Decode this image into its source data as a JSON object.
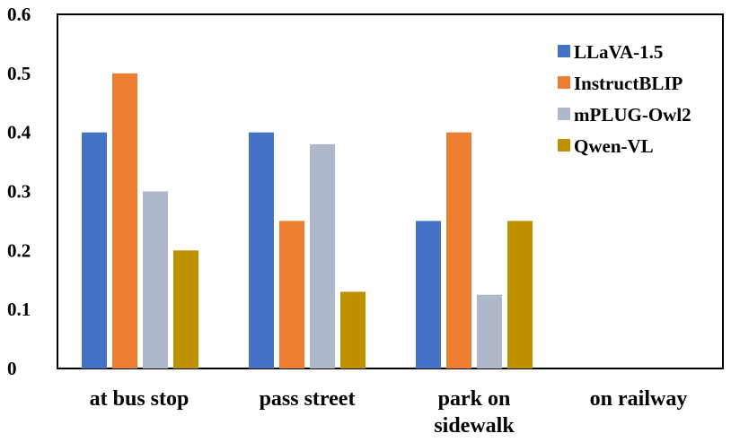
{
  "chart_data": {
    "type": "bar",
    "categories": [
      [
        "at bus stop"
      ],
      [
        "pass street"
      ],
      [
        "park on",
        "sidewalk"
      ],
      [
        "on railway"
      ]
    ],
    "series": [
      {
        "name": "LLaVA-1.5",
        "color": "#4472c4",
        "values": [
          0.4,
          0.4,
          0.25,
          0
        ]
      },
      {
        "name": "InstructBLIP",
        "color": "#ed7d31",
        "values": [
          0.5,
          0.25,
          0.4,
          0
        ]
      },
      {
        "name": "mPLUG-Owl2",
        "color": "#adb9ca",
        "values": [
          0.3,
          0.38,
          0.125,
          0
        ]
      },
      {
        "name": "Qwen-VL",
        "color": "#bf9000",
        "values": [
          0.2,
          0.13,
          0.25,
          0
        ]
      }
    ],
    "yticks": [
      "0",
      "0.1",
      "0.2",
      "0.3",
      "0.4",
      "0.5",
      "0.6"
    ],
    "ylim": [
      0,
      0.6
    ],
    "grid": false,
    "legend_position": "top-right"
  }
}
